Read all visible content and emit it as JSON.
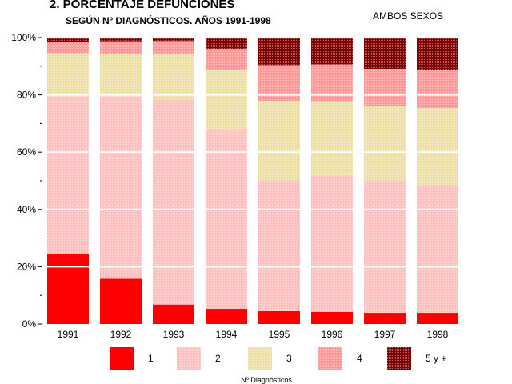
{
  "header": {
    "title": "2. PORCENTAJE DEFUNCIONES",
    "subtitle": "SEGÚN Nº DIAGNÓSTICOS. AÑOS 1991-1998",
    "note": "AMBOS SEXOS"
  },
  "chart_data": {
    "type": "bar",
    "stacked": true,
    "normalized": true,
    "title": "2. PORCENTAJE DEFUNCIONES",
    "subtitle": "SEGÚN Nº DIAGNÓSTICOS. AÑOS 1991-1998",
    "xlabel": "Nº Diagnósticos",
    "ylabel": "",
    "categories": [
      "1991",
      "1992",
      "1993",
      "1994",
      "1995",
      "1996",
      "1997",
      "1998"
    ],
    "ylim": [
      0,
      100
    ],
    "y_ticks": [
      "0%",
      "20%",
      "40%",
      "60%",
      "80%",
      "100%"
    ],
    "grid": true,
    "legend_position": "bottom",
    "series": [
      {
        "name": "1",
        "color": "#ff0000",
        "pattern": "solid",
        "values": [
          24.4,
          15.8,
          6.8,
          5.3,
          4.5,
          4.2,
          3.9,
          3.9
        ]
      },
      {
        "name": "2",
        "color": "#ffc0c0",
        "pattern": "dotted",
        "values": [
          55.0,
          63.6,
          71.6,
          62.6,
          45.5,
          47.6,
          46.1,
          44.6
        ]
      },
      {
        "name": "3",
        "color": "#ecdfa8",
        "pattern": "dotted",
        "values": [
          15.2,
          14.8,
          15.7,
          20.9,
          27.9,
          26.0,
          26.1,
          26.9
        ]
      },
      {
        "name": "4",
        "color": "#ff9999",
        "pattern": "dotted",
        "values": [
          3.9,
          4.5,
          4.7,
          7.3,
          12.5,
          12.8,
          13.0,
          13.4
        ]
      },
      {
        "name": "5 y +",
        "color": "#800000",
        "pattern": "dotted",
        "values": [
          1.5,
          1.3,
          1.2,
          3.9,
          9.6,
          9.4,
          10.9,
          11.2
        ]
      }
    ]
  }
}
